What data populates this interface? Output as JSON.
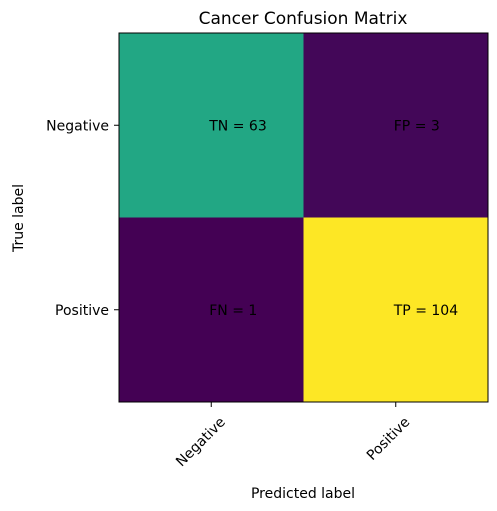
{
  "chart_data": {
    "type": "heatmap",
    "title": "Cancer Confusion Matrix",
    "xlabel": "Predicted label",
    "ylabel": "True label",
    "x_categories": [
      "Negative",
      "Positive"
    ],
    "y_categories": [
      "Negative",
      "Positive"
    ],
    "values": [
      [
        63,
        3
      ],
      [
        1,
        104
      ]
    ],
    "cell_labels": [
      [
        "TN = 63",
        "FP = 3"
      ],
      [
        "FN = 1",
        "TP = 104"
      ]
    ],
    "colormap": "viridis",
    "colors": {
      "low": "#440154",
      "mid": "#21a784",
      "high": "#fde725"
    },
    "grid": false
  }
}
